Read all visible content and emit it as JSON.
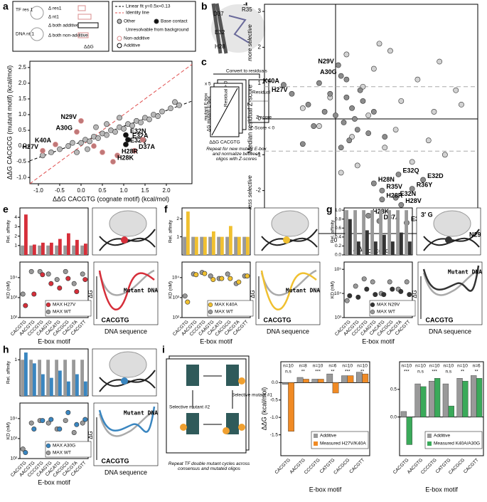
{
  "panel_labels": [
    "a",
    "b",
    "c",
    "d",
    "e",
    "f",
    "g",
    "h",
    "i"
  ],
  "a": {
    "legend_left": [
      "TF res 1",
      "DNA nt 1",
      "Δ res1",
      "Δ nt1",
      "Δ both additive",
      "Δ both non-additive",
      "ΔΔG"
    ],
    "legend_right": [
      "Linear fit y=0.5x+0.13",
      "Identity line",
      "Unresolvable from background",
      "Additive"
    ],
    "fit": {
      "slope": 0.5,
      "intercept": 0.13
    },
    "xlabel": "ΔΔG CACGTG (cognate motif) (kcal/mol)",
    "ylabel": "ΔΔG CACGCG (mutant motif) (kcal/mol)",
    "xlim": [
      -1.2,
      2.6
    ],
    "xticks": [
      {
        "value": -1,
        "label": "-1.0"
      },
      -0.5,
      {
        "value": 0,
        "label": "0.0"
      },
      0.5,
      {
        "value": 1,
        "label": "1.0"
      },
      1.5,
      {
        "value": 2,
        "label": "2.0"
      }
    ],
    "ylim": [
      -1.2,
      2.7
    ],
    "yticks": [
      {
        "value": -1,
        "label": "-1.0"
      },
      -0.5,
      {
        "value": 0,
        "label": "0.0"
      },
      0.5,
      {
        "value": 1,
        "label": "1.0"
      },
      1.5,
      {
        "value": 2,
        "label": "2.0"
      },
      2.5
    ],
    "series": [
      {
        "name": "Other",
        "color": "#b8b8b8",
        "x": [
          -0.9,
          -0.7,
          -0.5,
          -0.3,
          -0.2,
          0,
          0.1,
          0.2,
          0.3,
          0.4,
          0.5,
          0.6,
          0.7,
          0.8,
          0.9,
          1.0,
          1.1,
          1.2,
          1.3,
          1.4,
          1.5,
          1.6,
          1.7,
          1.8,
          1.9,
          2.1,
          0.35,
          0.6,
          0.9,
          -0.1,
          0.15,
          2.2,
          2.3
        ],
        "y": [
          -0.3,
          -0.2,
          -0.1,
          0,
          0.1,
          0.1,
          0.2,
          0.15,
          0.3,
          0.25,
          0.4,
          0.35,
          0.5,
          0.45,
          0.6,
          0.55,
          0.7,
          0.65,
          0.8,
          0.75,
          0.9,
          0.85,
          1.0,
          0.95,
          1.1,
          1.2,
          0.6,
          0.7,
          0.9,
          -0.2,
          -0.1,
          1.4,
          1.3
        ]
      },
      {
        "name": "Base contact",
        "color": "#111111",
        "x": [
          1.05,
          1.1,
          1.05
        ],
        "y": [
          0.35,
          0.2,
          0.05
        ],
        "point_labels": [
          "E32N",
          "E32A",
          "E32Q"
        ]
      },
      {
        "name": "Non-additive",
        "color": "#d98c8c",
        "x": [
          -0.9,
          -0.6,
          -0.1,
          0.0,
          1.25,
          0.85,
          0.75,
          0.5,
          1.45,
          0.3
        ],
        "y": [
          -0.15,
          0.05,
          0.45,
          0.8,
          -0.15,
          -0.3,
          -0.5,
          -0.2,
          0.2,
          0.0
        ],
        "point_labels": [
          "H27V",
          "K40A",
          "A30G",
          "N29V",
          "D37A",
          "H28R",
          "H28K",
          null,
          null,
          null
        ]
      }
    ]
  },
  "b": {
    "labels": [
      "D37",
      "R35",
      "E32",
      "H28"
    ]
  },
  "c": {
    "texts": [
      "x 5",
      "Convert to residuals",
      "mutant E-box",
      "ΔG mutant E-box",
      "ΔΔG CACGTG",
      "Residual",
      "Z-score",
      "Residual > 0",
      "Z-Score < 0",
      "Repeat for new mutant E-box and normalize between oligos with Z-scores"
    ]
  },
  "d": {
    "xlabel": "ΔΔG",
    "xlabel_sub": "CACGTG",
    "ylabel": "Median residual Z-score",
    "more": "more selective",
    "less": "less selective",
    "xlim": [
      -1.3,
      2.6
    ],
    "xticks": [
      -1,
      0,
      1,
      2
    ],
    "ylim": [
      -3.2,
      3.2
    ],
    "yticks": [
      -3,
      -2,
      -1,
      0,
      1,
      2,
      3
    ],
    "thresholds": [
      0.9,
      -0.9
    ],
    "series": [
      {
        "color": "#d2d2d2",
        "x": [
          -0.6,
          -0.3,
          -0.1,
          0.2,
          0.3,
          0.5,
          0.7,
          0.9,
          1.2,
          1.5,
          1.8,
          2.0,
          2.2,
          0.4,
          0.8,
          1.1,
          1.4,
          1.7,
          1.9,
          2.3,
          0.1,
          0.6,
          1.0
        ],
        "y": [
          0.3,
          -0.2,
          0.6,
          1.8,
          -0.5,
          0.9,
          1.4,
          -0.8,
          0.5,
          1.1,
          0.2,
          -1.0,
          0.8,
          -1.3,
          2.1,
          -0.3,
          -1.2,
          -0.6,
          1.6,
          0.4,
          -1.5,
          0.1,
          1.9
        ]
      },
      {
        "color": "#8c8c8c",
        "x": [
          0.05,
          0.1,
          -0.95,
          -0.8,
          1.15,
          1.6,
          1.4,
          0.7,
          0.85,
          1.1,
          1.2,
          0.85,
          0.6,
          0.8,
          1.3,
          -0.5,
          -0.2,
          0.0,
          0.15,
          0.3,
          0.4,
          0.5,
          -0.4,
          -0.1,
          0.2,
          0.25,
          0.35,
          0.6,
          -0.3,
          0.1,
          0.45,
          0.7,
          0.9,
          0.2,
          -0.6
        ],
        "y": [
          1.5,
          1.2,
          0.95,
          0.7,
          -1.55,
          -1.7,
          -1.95,
          -1.8,
          -2.0,
          -2.2,
          -2.4,
          -2.25,
          -2.7,
          -2.85,
          -2.9,
          0.4,
          0.2,
          0.1,
          -0.1,
          0.3,
          -0.3,
          0.5,
          -0.2,
          0.7,
          0.6,
          -0.6,
          0.0,
          -0.4,
          1.0,
          -0.8,
          0.8,
          0.2,
          -0.5,
          1.1,
          -0.7
        ],
        "point_labels": [
          "N29V",
          "A30G",
          "K40A",
          "H27V",
          "E32Q",
          "E32D",
          "R36Y",
          "H28N",
          "R35V",
          "E32N",
          "H28V",
          "H28R",
          "H28K",
          "D37A",
          "E32A",
          null,
          null,
          null,
          null,
          null,
          null,
          null,
          null,
          null,
          null,
          null,
          null,
          null,
          null,
          null,
          null,
          null,
          null,
          null,
          null
        ]
      }
    ]
  },
  "motifs": [
    "CACGTG",
    "AACGTG",
    "CCCGTG",
    "CAAGTG",
    "CACATG",
    "CACGCG",
    "CACGTA",
    "CACGTT"
  ],
  "landscape": {
    "mutant": "Mutant DNA",
    "min": "CACGTG",
    "y": "ΔG",
    "x": "DNA sequence"
  },
  "e": {
    "xlabel": "E-box motif",
    "affinity": {
      "ylabel": "Rel. affinity",
      "ylim": [
        0,
        5
      ],
      "yticks": [
        1,
        2,
        3,
        4
      ],
      "series": [
        {
          "color": "#999999",
          "values": [
            1,
            1,
            1,
            1,
            1,
            1,
            1,
            1
          ]
        },
        {
          "color": "#d62f3a",
          "values": [
            4.3,
            1.1,
            1.3,
            1.3,
            1.7,
            2.3,
            1.6,
            1.2
          ]
        }
      ]
    },
    "kd": {
      "ylabel": "KD (nM)",
      "log": true,
      "ylim": [
        100,
        60000
      ],
      "yticks": [
        {
          "value": 100,
          "label": "10²"
        },
        {
          "value": 1000,
          "label": "10³"
        },
        {
          "value": 10000,
          "label": "10⁴"
        }
      ],
      "series": [
        {
          "name": "MAX WT",
          "color": "#999999",
          "values": [
            1500,
            20000,
            20000,
            15000,
            8000,
            20000,
            5000,
            15000
          ]
        },
        {
          "name": "MAX H27V",
          "color": "#d62f3a",
          "values": [
            400,
            1500,
            14000,
            5000,
            3000,
            9000,
            2000,
            8000
          ]
        }
      ]
    }
  },
  "f": {
    "xlabel": "E-box motif",
    "affinity": {
      "ylabel": "Rel. affinity",
      "ylim": [
        0,
        2.6
      ],
      "yticks": [
        1,
        2
      ],
      "series": [
        {
          "color": "#999999",
          "values": [
            1,
            1,
            1,
            1,
            1,
            1,
            1,
            1
          ]
        },
        {
          "color": "#f0c030",
          "values": [
            2.4,
            1.0,
            1.0,
            1.3,
            1.0,
            1.6,
            1.0,
            1.0
          ]
        }
      ]
    },
    "kd": {
      "ylabel": "KD (nM)",
      "log": true,
      "ylim": [
        100,
        60000
      ],
      "yticks": [
        {
          "value": 100,
          "label": "10²"
        },
        {
          "value": 1000,
          "label": "10³"
        },
        {
          "value": 10000,
          "label": "10⁴"
        }
      ],
      "series": [
        {
          "name": "MAX WT",
          "color": "#999999",
          "values": [
            1200,
            15000,
            18000,
            12000,
            9000,
            15000,
            5000,
            12000
          ]
        },
        {
          "name": "MAX K40A",
          "color": "#f0c030",
          "values": [
            600,
            14000,
            16000,
            8000,
            9000,
            9000,
            6000,
            12000
          ]
        }
      ]
    }
  },
  "g": {
    "xlabel": "E-box motif",
    "structure_labels": [
      "3′ G",
      "N29"
    ],
    "affinity": {
      "ylabel": "Rel. affinity",
      "ylim": [
        0,
        1.05
      ],
      "yticks": [
        {
          "value": 0,
          "label": "0.0"
        },
        0.2,
        0.4,
        0.6,
        0.8,
        {
          "value": 1,
          "label": "1.0"
        }
      ],
      "series": [
        {
          "color": "#999999",
          "values": [
            1,
            1,
            1,
            1,
            1,
            1,
            1,
            1
          ]
        },
        {
          "color": "#333333",
          "values": [
            0.8,
            0.3,
            0.55,
            0.3,
            0.45,
            0.3,
            0.5,
            0.3
          ]
        }
      ]
    },
    "kd": {
      "ylabel": "KD (nM)",
      "log": true,
      "ylim": [
        1000,
        200000
      ],
      "yticks": [
        {
          "value": 1000,
          "label": "10³"
        },
        {
          "value": 10000,
          "label": "10⁴"
        },
        {
          "value": 100000,
          "label": "10⁵"
        }
      ],
      "series": [
        {
          "name": "MAX WT",
          "color": "#999999",
          "values": [
            5000,
            20000,
            40000,
            30000,
            10000,
            30000,
            15000,
            30000
          ]
        },
        {
          "name": "MAX N29V",
          "color": "#333333",
          "values": [
            8000,
            7000,
            15000,
            9000,
            9000,
            15000,
            12000,
            9000
          ]
        }
      ]
    }
  },
  "h": {
    "xlabel": "E-box motif",
    "affinity": {
      "ylabel": "Rel. affinity",
      "ylim": [
        0,
        1.3
      ],
      "yticks": [
        1
      ],
      "series": [
        {
          "color": "#999999",
          "values": [
            1,
            1,
            1,
            1,
            1,
            1,
            1,
            1
          ]
        },
        {
          "color": "#3a86c0",
          "values": [
            1.2,
            0.9,
            0.6,
            0.5,
            0.7,
            0.4,
            0.6,
            0.4
          ]
        }
      ]
    },
    "kd": {
      "ylabel": "KD (nM)",
      "log": true,
      "ylim": [
        100,
        60000
      ],
      "yticks": [
        {
          "value": 100,
          "label": "10²"
        },
        {
          "value": 1000,
          "label": "10³"
        },
        {
          "value": 10000,
          "label": "10⁴"
        }
      ],
      "series": [
        {
          "name": "MAX WT",
          "color": "#999999",
          "values": [
            300,
            6000,
            8000,
            6000,
            3000,
            8000,
            2000,
            6000
          ]
        },
        {
          "name": "MAX A30G",
          "color": "#3a86c0",
          "values": [
            200,
            3000,
            8000,
            9000,
            3000,
            20000,
            5000,
            9000
          ]
        }
      ]
    }
  },
  "i": {
    "diagram": [
      "Selective mutant #1",
      "Selective mutant #2",
      "Repeat TF double mutant cycles across consensus and mutated oligos"
    ],
    "ylabel": "ΔΔG (kcal/mol)",
    "xlabel": "E-box motif",
    "charts": [
      {
        "categories": [
          "CACGTG",
          "AACGTG",
          "CCCGTG",
          "CATGTG",
          "CACGCG",
          "CACGTT"
        ],
        "ylim": [
          -2.1,
          0.6
        ],
        "yticks": [
          {
            "value": -1.5,
            "label": "-1.5"
          },
          {
            "value": -1,
            "label": "-1.0"
          },
          -0.5,
          {
            "value": 0,
            "label": "0.0"
          }
        ],
        "series": [
          {
            "name": "Additive",
            "color": "#999999",
            "values": [
              -0.05,
              0.15,
              0.1,
              0.25,
              0.2,
              0.3
            ]
          },
          {
            "name": "Measured H27V/K40A",
            "color": "#f08a24",
            "values": [
              -1.4,
              0.1,
              0.1,
              -0.3,
              0.2,
              0.25
            ]
          }
        ],
        "n": [
          "n=10",
          "n=8",
          "n=10",
          "n=6",
          "n=10",
          "n=10"
        ],
        "sig": [
          "n.s",
          "**",
          "***",
          "**",
          "***",
          "**"
        ]
      },
      {
        "categories": [
          "CACGTG",
          "AACGTG",
          "CCCGTG",
          "CATGTG",
          "CACGCG",
          "CACGTT"
        ],
        "ylim": [
          -0.7,
          1.0
        ],
        "yticks": [
          {
            "value": 0,
            "label": "0.0"
          },
          0.5
        ],
        "series": [
          {
            "name": "Additive",
            "color": "#999999",
            "values": [
              0.1,
              0.6,
              0.65,
              0.6,
              0.7,
              0.75
            ]
          },
          {
            "name": "Measured K40A/A30G",
            "color": "#3aaa5a",
            "values": [
              -0.5,
              0.55,
              0.7,
              0.2,
              0.65,
              0.7
            ]
          }
        ],
        "n": [
          "n=10",
          "n=10",
          "n=10",
          "n=10",
          "n=10",
          "n=6"
        ],
        "sig": [
          "***",
          "n.s",
          "***",
          "n.s",
          "**",
          "**"
        ]
      }
    ]
  }
}
